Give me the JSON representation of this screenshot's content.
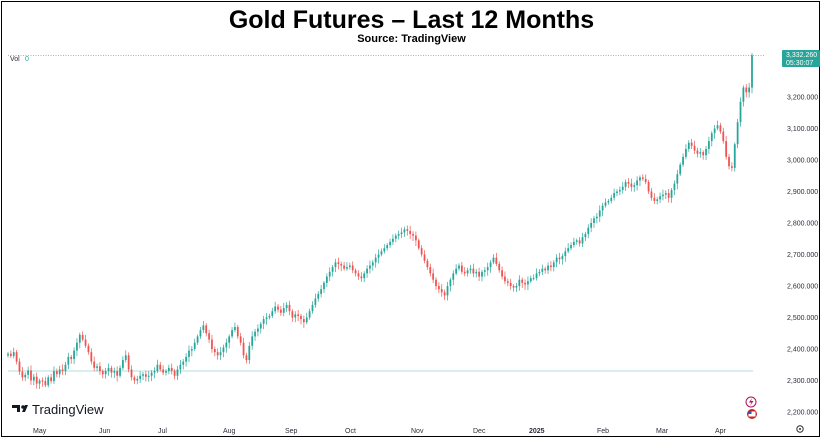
{
  "header": {
    "title": "Gold Futures – Last 12 Months",
    "subtitle": "Source: TradingView"
  },
  "volume_label": "Vol",
  "volume_value": "0",
  "price_tag": {
    "price": "3,332.260",
    "countdown": "05:30:07"
  },
  "branding": {
    "logo_text": "TradingView"
  },
  "colors": {
    "up": "#26a69a",
    "down": "#ef5350",
    "axis_text": "#2a2e39",
    "price_tag": "#26a69a"
  },
  "chart_data": {
    "type": "candlestick",
    "title": "Gold Futures – Last 12 Months",
    "subtitle": "Source: TradingView",
    "ylim": [
      2180,
      3400
    ],
    "y_ticks": [
      "3,200.000",
      "3,100.000",
      "3,000.000",
      "2,900.000",
      "2,800.000",
      "2,700.000",
      "2,600.000",
      "2,500.000",
      "2,400.000",
      "2,300.000",
      "2,200.000"
    ],
    "y_tick_values": [
      3200,
      3100,
      3000,
      2900,
      2800,
      2700,
      2600,
      2500,
      2400,
      2300,
      2200
    ],
    "x_ticks": [
      "May",
      "Jun",
      "Jul",
      "Aug",
      "Sep",
      "Oct",
      "Nov",
      "Dec",
      "2025",
      "Feb",
      "Mar",
      "Apr"
    ],
    "x_tick_bold": [
      false,
      false,
      false,
      false,
      false,
      false,
      false,
      false,
      true,
      false,
      false,
      false
    ],
    "last_price": 3332.26,
    "closes": [
      2385,
      2378,
      2390,
      2360,
      2328,
      2310,
      2318,
      2332,
      2300,
      2312,
      2290,
      2300,
      2298,
      2285,
      2310,
      2298,
      2330,
      2320,
      2335,
      2330,
      2350,
      2375,
      2368,
      2395,
      2420,
      2445,
      2430,
      2410,
      2390,
      2360,
      2340,
      2345,
      2330,
      2320,
      2330,
      2340,
      2325,
      2330,
      2315,
      2340,
      2365,
      2380,
      2335,
      2310,
      2300,
      2305,
      2315,
      2320,
      2312,
      2315,
      2325,
      2330,
      2350,
      2335,
      2325,
      2330,
      2340,
      2330,
      2315,
      2335,
      2350,
      2360,
      2375,
      2395,
      2400,
      2420,
      2440,
      2460,
      2475,
      2450,
      2430,
      2400,
      2390,
      2380,
      2390,
      2405,
      2420,
      2440,
      2460,
      2470,
      2440,
      2420,
      2380,
      2365,
      2410,
      2440,
      2455,
      2465,
      2480,
      2495,
      2500,
      2505,
      2520,
      2535,
      2525,
      2515,
      2530,
      2540,
      2520,
      2500,
      2510,
      2505,
      2495,
      2485,
      2500,
      2520,
      2540,
      2560,
      2575,
      2590,
      2610,
      2630,
      2645,
      2660,
      2675,
      2670,
      2665,
      2655,
      2660,
      2665,
      2650,
      2640,
      2630,
      2625,
      2640,
      2655,
      2665,
      2675,
      2690,
      2700,
      2710,
      2720,
      2730,
      2740,
      2750,
      2760,
      2765,
      2770,
      2780,
      2775,
      2765,
      2760,
      2745,
      2720,
      2700,
      2680,
      2660,
      2640,
      2620,
      2600,
      2590,
      2580,
      2570,
      2600,
      2620,
      2640,
      2655,
      2665,
      2645,
      2640,
      2650,
      2655,
      2640,
      2645,
      2630,
      2645,
      2650,
      2660,
      2675,
      2690,
      2670,
      2650,
      2630,
      2615,
      2610,
      2600,
      2595,
      2600,
      2620,
      2610,
      2605,
      2615,
      2625,
      2625,
      2640,
      2645,
      2655,
      2650,
      2665,
      2660,
      2675,
      2690,
      2685,
      2695,
      2710,
      2720,
      2730,
      2740,
      2745,
      2735,
      2755,
      2765,
      2785,
      2800,
      2815,
      2820,
      2840,
      2855,
      2865,
      2870,
      2880,
      2895,
      2900,
      2905,
      2915,
      2930,
      2925,
      2915,
      2920,
      2935,
      2945,
      2940,
      2930,
      2900,
      2880,
      2870,
      2875,
      2885,
      2890,
      2895,
      2880,
      2905,
      2925,
      2955,
      2985,
      3010,
      3035,
      3055,
      3045,
      3030,
      3020,
      3025,
      3015,
      3035,
      3060,
      3085,
      3100,
      3110,
      3090,
      3060,
      3010,
      2980,
      2975,
      3050,
      3120,
      3185,
      3230,
      3215,
      3230,
      3332
    ]
  }
}
